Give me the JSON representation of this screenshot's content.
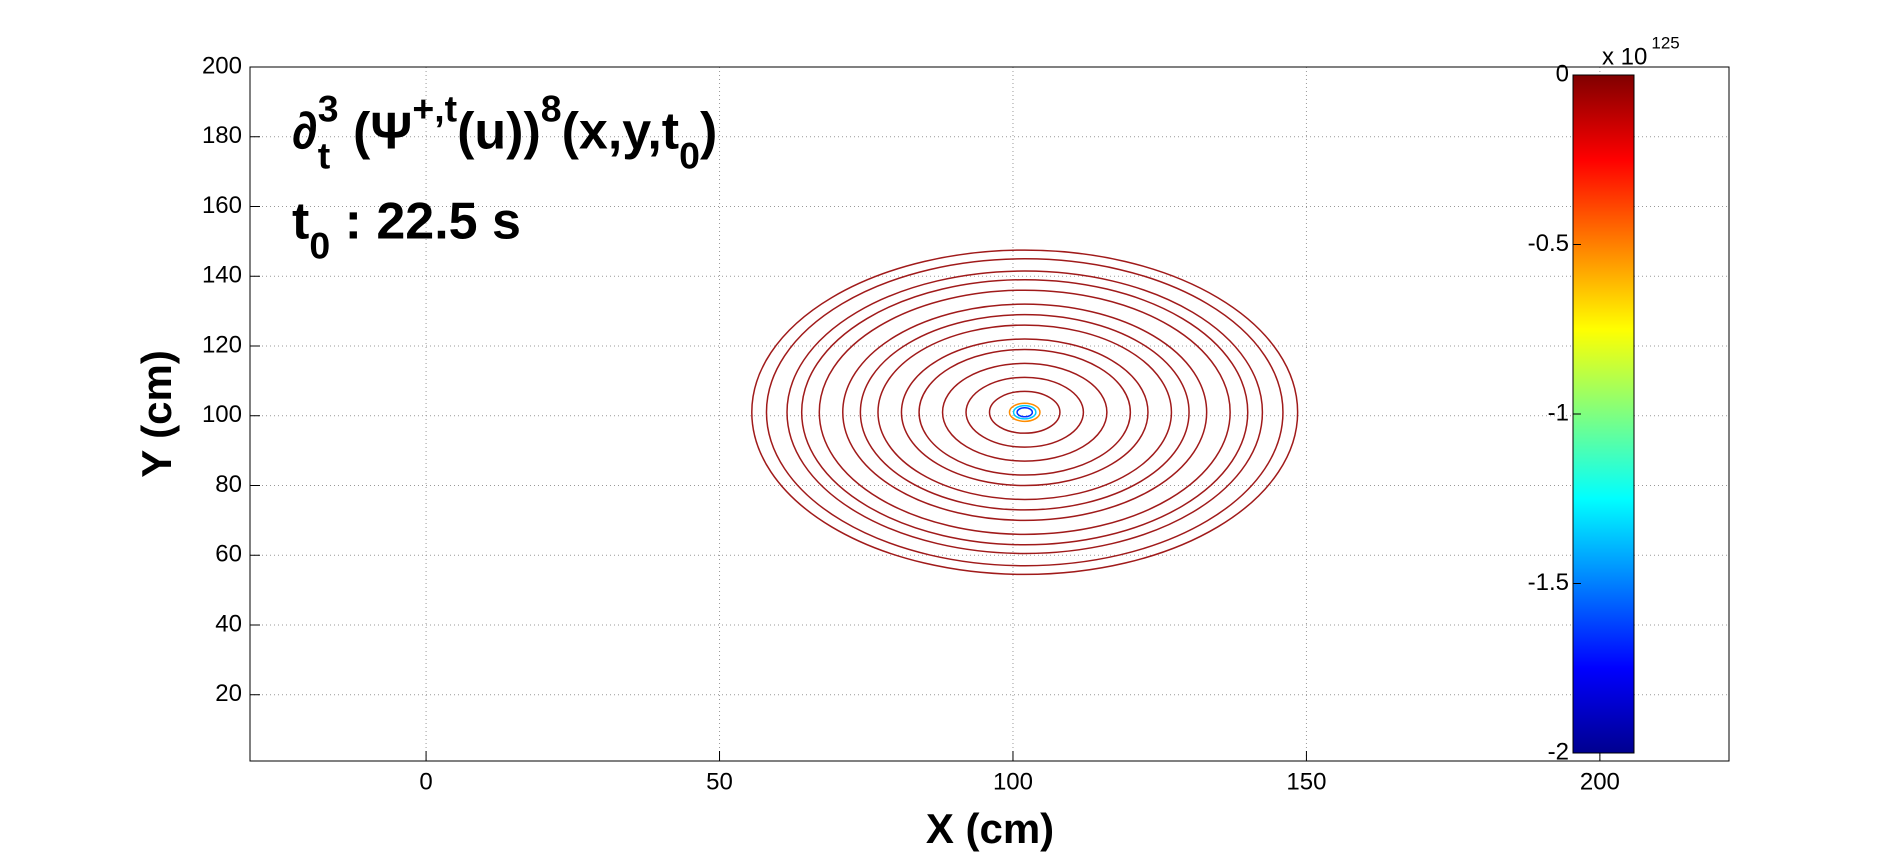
{
  "chart_data": {
    "type": "contour",
    "title_lines": [
      [
        {
          "text": "∂"
        },
        {
          "text": "t",
          "role": "sub"
        },
        {
          "text": "3",
          "role": "sup"
        },
        {
          "text": " (Ψ"
        },
        {
          "text": "+,t",
          "role": "sup"
        },
        {
          "text": "(u))"
        },
        {
          "text": "8",
          "role": "sup"
        },
        {
          "text": "(x,y,t"
        },
        {
          "text": "0",
          "role": "sub"
        },
        {
          "text": ")"
        }
      ],
      [
        {
          "text": "t"
        },
        {
          "text": "0",
          "role": "sub"
        },
        {
          "text": " : 22.5 s"
        }
      ]
    ],
    "xlabel": "X (cm)",
    "ylabel": "Y (cm)",
    "xlim": [
      -30,
      222
    ],
    "ylim": [
      1,
      200
    ],
    "xticks": [
      0,
      50,
      100,
      150,
      200
    ],
    "yticks": [
      20,
      40,
      60,
      80,
      100,
      120,
      140,
      160,
      180,
      200
    ],
    "grid": true,
    "center": [
      102,
      101
    ],
    "contour_radii": [
      46.5,
      44,
      40.5,
      38,
      35,
      31,
      28,
      25,
      21,
      18,
      14,
      10,
      6,
      2.6,
      1.9,
      1.3
    ],
    "contour_colors": [
      "#a01a1a",
      "#a01a1a",
      "#a01a1a",
      "#a01a1a",
      "#a01a1a",
      "#a01a1a",
      "#a01a1a",
      "#a01a1a",
      "#a01a1a",
      "#a01a1a",
      "#a01a1a",
      "#a01a1a",
      "#a01a1a",
      "#ff8c00",
      "#00c8ff",
      "#0030ff"
    ],
    "colorbar": {
      "lim": [
        -2,
        0
      ],
      "ticks": [
        0,
        -0.5,
        -1,
        -1.5,
        -2
      ],
      "exponent_label": [
        {
          "text": "x 10"
        },
        {
          "text": "125",
          "role": "sup"
        }
      ]
    }
  }
}
